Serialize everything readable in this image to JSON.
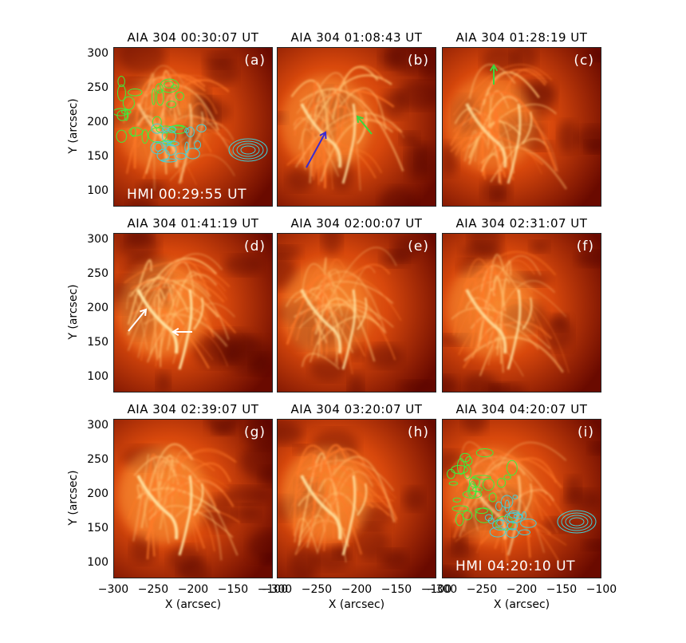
{
  "figure": {
    "panels": [
      {
        "id": "a",
        "title": "AIA  304  00:30:07  UT",
        "letter": "(a)",
        "overlay": "HMI  00:29:55  UT",
        "contours": true,
        "arrows": []
      },
      {
        "id": "b",
        "title": "AIA  304  01:08:43  UT",
        "letter": "(b)",
        "overlay": "",
        "contours": false,
        "arrows": [
          "blue-arrow",
          "green-arrow"
        ]
      },
      {
        "id": "c",
        "title": "AIA  304  01:28:19  UT",
        "letter": "(c)",
        "overlay": "",
        "contours": false,
        "arrows": [
          "green-arrow"
        ]
      },
      {
        "id": "d",
        "title": "AIA  304  01:41:19  UT",
        "letter": "(d)",
        "overlay": "",
        "contours": false,
        "arrows": [
          "white-arrow",
          "white-arrow"
        ]
      },
      {
        "id": "e",
        "title": "AIA  304  02:00:07  UT",
        "letter": "(e)",
        "overlay": "",
        "contours": false,
        "arrows": []
      },
      {
        "id": "f",
        "title": "AIA  304  02:31:07  UT",
        "letter": "(f)",
        "overlay": "",
        "contours": false,
        "arrows": []
      },
      {
        "id": "g",
        "title": "AIA  304  02:39:07  UT",
        "letter": "(g)",
        "overlay": "",
        "contours": false,
        "arrows": []
      },
      {
        "id": "h",
        "title": "AIA  304  03:20:07  UT",
        "letter": "(h)",
        "overlay": "",
        "contours": false,
        "arrows": []
      },
      {
        "id": "i",
        "title": "AIA  304  04:20:07  UT",
        "letter": "(i)",
        "overlay": "HMI  04:20:10  UT",
        "contours": true,
        "arrows": []
      }
    ],
    "y_axis": {
      "label": "Y  (arcsec)",
      "ticks": [
        "300",
        "250",
        "200",
        "150",
        "100"
      ]
    },
    "x_axis": {
      "label": "X  (arcsec)",
      "ticks": [
        "−300",
        "−250",
        "−200",
        "−150",
        "−100"
      ]
    }
  },
  "colors": {
    "background": "#ffffff",
    "sun_dark": "#6a0a00",
    "sun_mid": "#d8480c",
    "sun_bright": "#ffe2a0",
    "contour_positive": "#3cf03c",
    "contour_negative": "#40d0d8",
    "arrow_blue": "#3a2ad0",
    "arrow_green": "#3cd83c",
    "arrow_white": "#ffffff"
  }
}
